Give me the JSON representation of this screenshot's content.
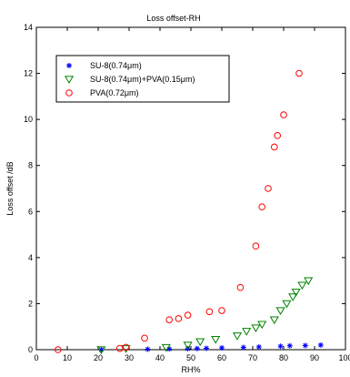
{
  "chart_data": {
    "type": "scatter",
    "title": "Loss offset-RH",
    "xlabel": "RH%",
    "ylabel": "Loss offset /dB",
    "xlim": [
      0,
      100
    ],
    "ylim": [
      0,
      14
    ],
    "xticks": [
      "0",
      "10",
      "20",
      "30",
      "40",
      "50",
      "60",
      "70",
      "80",
      "90",
      "100"
    ],
    "yticks": [
      "0",
      "2",
      "4",
      "6",
      "8",
      "10",
      "12",
      "14"
    ],
    "grid": false,
    "legend_position": "top-left",
    "series": [
      {
        "name": "SU-8(0.74μm)",
        "marker": "star",
        "color": "#0000ff",
        "points": [
          [
            21,
            0.0
          ],
          [
            36,
            0.02
          ],
          [
            43,
            0.03
          ],
          [
            49,
            0.04
          ],
          [
            52,
            0.05
          ],
          [
            55,
            0.06
          ],
          [
            60,
            0.08
          ],
          [
            67,
            0.1
          ],
          [
            72,
            0.12
          ],
          [
            79,
            0.15
          ],
          [
            82,
            0.17
          ],
          [
            87,
            0.18
          ],
          [
            92,
            0.2
          ]
        ]
      },
      {
        "name": "SU-8(0.74μm)+PVA(0.15μm)",
        "marker": "triangle-down",
        "color": "#008000",
        "points": [
          [
            21,
            0.0
          ],
          [
            29,
            0.05
          ],
          [
            42,
            0.1
          ],
          [
            49,
            0.2
          ],
          [
            53,
            0.35
          ],
          [
            58,
            0.45
          ],
          [
            65,
            0.6
          ],
          [
            68,
            0.8
          ],
          [
            71,
            0.95
          ],
          [
            73,
            1.1
          ],
          [
            77,
            1.3
          ],
          [
            79,
            1.7
          ],
          [
            81,
            2.0
          ],
          [
            83,
            2.3
          ],
          [
            84,
            2.5
          ],
          [
            86,
            2.8
          ],
          [
            88,
            3.0
          ]
        ]
      },
      {
        "name": "PVA(0.72μm)",
        "marker": "circle",
        "color": "#ff0000",
        "points": [
          [
            7,
            0.0
          ],
          [
            27,
            0.05
          ],
          [
            29,
            0.1
          ],
          [
            35,
            0.5
          ],
          [
            43,
            1.3
          ],
          [
            46,
            1.35
          ],
          [
            49,
            1.5
          ],
          [
            56,
            1.65
          ],
          [
            60,
            1.7
          ],
          [
            66,
            2.7
          ],
          [
            71,
            4.5
          ],
          [
            73,
            6.2
          ],
          [
            75,
            7.0
          ],
          [
            77,
            8.8
          ],
          [
            78,
            9.3
          ],
          [
            80,
            10.2
          ],
          [
            85,
            12.0
          ]
        ]
      }
    ]
  }
}
